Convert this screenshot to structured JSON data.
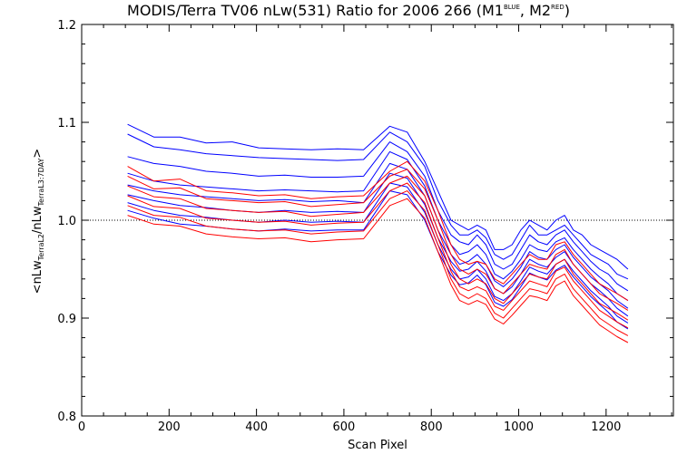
{
  "chart_data": {
    "type": "line",
    "title": {
      "main": "MODIS/Terra TV06 nLw(531) Ratio for 2006 266 (M1",
      "sup1": "BLUE",
      "mid": ", M2",
      "sup2": "RED",
      "end": ")"
    },
    "xlabel": "Scan Pixel",
    "ylabel": {
      "pre": "<nLw",
      "sub1": "TerraL2",
      "mid": "/nLw",
      "sub2": "TerraL3:7DAY",
      "post": ">"
    },
    "xlim": [
      0,
      1354
    ],
    "ylim": [
      0.8,
      1.2
    ],
    "xticks": [
      "0",
      "200",
      "400",
      "600",
      "800",
      "1000",
      "1200"
    ],
    "yticks": [
      "0.8",
      "0.9",
      "1.0",
      "1.1",
      "1.2"
    ],
    "reference_line": 1.0,
    "grid": false,
    "colors": {
      "M1": "#0000ff",
      "M2": "#ff0000",
      "axis": "#000000"
    },
    "x": [
      105,
      165,
      225,
      285,
      345,
      405,
      465,
      525,
      585,
      645,
      705,
      745,
      785,
      815,
      845,
      865,
      885,
      905,
      925,
      945,
      965,
      985,
      1005,
      1025,
      1045,
      1065,
      1085,
      1105,
      1125,
      1145,
      1165,
      1185,
      1205,
      1225,
      1250
    ],
    "series": [
      {
        "name": "M1",
        "values": [
          1.098,
          1.085,
          1.085,
          1.079,
          1.08,
          1.074,
          1.073,
          1.072,
          1.073,
          1.072,
          1.096,
          1.09,
          1.06,
          1.03,
          1.0,
          0.995,
          0.99,
          0.995,
          0.99,
          0.97,
          0.97,
          0.975,
          0.99,
          1.0,
          0.995,
          0.99,
          1.0,
          1.005,
          0.99,
          0.985,
          0.975,
          0.97,
          0.965,
          0.96,
          0.95
        ]
      },
      {
        "name": "M1",
        "values": [
          1.088,
          1.075,
          1.072,
          1.068,
          1.066,
          1.064,
          1.063,
          1.062,
          1.061,
          1.062,
          1.09,
          1.08,
          1.055,
          1.02,
          0.995,
          0.985,
          0.985,
          0.99,
          0.982,
          0.965,
          0.96,
          0.965,
          0.98,
          0.995,
          0.985,
          0.985,
          0.99,
          0.995,
          0.985,
          0.975,
          0.965,
          0.96,
          0.955,
          0.945,
          0.94
        ]
      },
      {
        "name": "M1",
        "values": [
          1.065,
          1.058,
          1.055,
          1.05,
          1.048,
          1.045,
          1.046,
          1.044,
          1.044,
          1.045,
          1.08,
          1.07,
          1.045,
          1.01,
          0.985,
          0.978,
          0.975,
          0.985,
          0.975,
          0.955,
          0.95,
          0.955,
          0.97,
          0.985,
          0.978,
          0.975,
          0.985,
          0.99,
          0.978,
          0.968,
          0.958,
          0.95,
          0.945,
          0.935,
          0.928
        ]
      },
      {
        "name": "M1",
        "values": [
          1.048,
          1.04,
          1.036,
          1.034,
          1.032,
          1.03,
          1.031,
          1.03,
          1.029,
          1.03,
          1.07,
          1.062,
          1.035,
          1.0,
          0.975,
          0.965,
          0.968,
          0.975,
          0.965,
          0.945,
          0.94,
          0.948,
          0.96,
          0.975,
          0.97,
          0.968,
          0.978,
          0.982,
          0.97,
          0.96,
          0.95,
          0.942,
          0.935,
          0.925,
          0.918
        ]
      },
      {
        "name": "M1",
        "values": [
          1.036,
          1.03,
          1.026,
          1.024,
          1.022,
          1.02,
          1.021,
          1.019,
          1.02,
          1.018,
          1.058,
          1.052,
          1.025,
          0.99,
          0.965,
          0.955,
          0.958,
          0.965,
          0.955,
          0.938,
          0.932,
          0.94,
          0.952,
          0.968,
          0.962,
          0.96,
          0.97,
          0.975,
          0.962,
          0.952,
          0.942,
          0.935,
          0.928,
          0.918,
          0.91
        ]
      },
      {
        "name": "M1",
        "values": [
          1.026,
          1.02,
          1.015,
          1.013,
          1.01,
          1.008,
          1.01,
          1.008,
          1.009,
          1.008,
          1.048,
          1.043,
          1.016,
          0.982,
          0.958,
          0.948,
          0.95,
          0.958,
          0.948,
          0.93,
          0.925,
          0.932,
          0.945,
          0.96,
          0.955,
          0.952,
          0.962,
          0.968,
          0.955,
          0.945,
          0.935,
          0.928,
          0.92,
          0.91,
          0.902
        ]
      },
      {
        "name": "M1",
        "values": [
          1.018,
          1.01,
          1.005,
          1.003,
          1.0,
          0.998,
          1.0,
          0.998,
          0.999,
          0.998,
          1.038,
          1.034,
          1.008,
          0.975,
          0.95,
          0.94,
          0.942,
          0.95,
          0.94,
          0.922,
          0.918,
          0.925,
          0.938,
          0.952,
          0.948,
          0.945,
          0.955,
          0.96,
          0.948,
          0.938,
          0.928,
          0.92,
          0.912,
          0.902,
          0.895
        ]
      },
      {
        "name": "M1",
        "values": [
          1.01,
          1.002,
          0.996,
          0.994,
          0.991,
          0.989,
          0.991,
          0.989,
          0.99,
          0.99,
          1.03,
          1.026,
          1.0,
          0.968,
          0.944,
          0.934,
          0.936,
          0.944,
          0.934,
          0.916,
          0.912,
          0.919,
          0.932,
          0.946,
          0.942,
          0.939,
          0.949,
          0.954,
          0.942,
          0.932,
          0.922,
          0.914,
          0.906,
          0.896,
          0.889
        ]
      },
      {
        "name": "M2",
        "values": [
          1.055,
          1.04,
          1.042,
          1.03,
          1.028,
          1.025,
          1.026,
          1.022,
          1.024,
          1.025,
          1.05,
          1.06,
          1.04,
          1.01,
          0.975,
          0.96,
          0.955,
          0.958,
          0.955,
          0.94,
          0.935,
          0.945,
          0.955,
          0.965,
          0.96,
          0.96,
          0.975,
          0.978,
          0.965,
          0.955,
          0.945,
          0.935,
          0.93,
          0.925,
          0.918
        ]
      },
      {
        "name": "M2",
        "values": [
          1.045,
          1.032,
          1.033,
          1.022,
          1.02,
          1.018,
          1.019,
          1.014,
          1.016,
          1.018,
          1.045,
          1.052,
          1.032,
          1.0,
          0.965,
          0.95,
          0.945,
          0.95,
          0.945,
          0.93,
          0.925,
          0.935,
          0.945,
          0.955,
          0.952,
          0.95,
          0.965,
          0.97,
          0.955,
          0.945,
          0.935,
          0.925,
          0.92,
          0.915,
          0.908
        ]
      },
      {
        "name": "M2",
        "values": [
          1.035,
          1.024,
          1.022,
          1.012,
          1.01,
          1.008,
          1.009,
          1.004,
          1.006,
          1.008,
          1.038,
          1.045,
          1.025,
          0.99,
          0.955,
          0.94,
          0.935,
          0.94,
          0.935,
          0.92,
          0.915,
          0.925,
          0.935,
          0.945,
          0.942,
          0.94,
          0.955,
          0.96,
          0.945,
          0.935,
          0.925,
          0.915,
          0.91,
          0.905,
          0.898
        ]
      },
      {
        "name": "M2",
        "values": [
          1.025,
          1.014,
          1.012,
          1.002,
          1.0,
          0.998,
          0.999,
          0.995,
          0.997,
          0.998,
          1.03,
          1.038,
          1.018,
          0.982,
          0.948,
          0.932,
          0.928,
          0.932,
          0.928,
          0.912,
          0.908,
          0.918,
          0.928,
          0.938,
          0.935,
          0.932,
          0.948,
          0.952,
          0.938,
          0.928,
          0.918,
          0.908,
          0.902,
          0.896,
          0.89
        ]
      },
      {
        "name": "M2",
        "values": [
          1.015,
          1.005,
          1.003,
          0.994,
          0.991,
          0.989,
          0.99,
          0.986,
          0.988,
          0.989,
          1.022,
          1.03,
          1.01,
          0.975,
          0.94,
          0.925,
          0.92,
          0.925,
          0.92,
          0.905,
          0.9,
          0.91,
          0.92,
          0.93,
          0.928,
          0.925,
          0.94,
          0.945,
          0.93,
          0.92,
          0.91,
          0.9,
          0.894,
          0.888,
          0.882
        ]
      },
      {
        "name": "M2",
        "values": [
          1.005,
          0.996,
          0.994,
          0.986,
          0.983,
          0.981,
          0.982,
          0.978,
          0.98,
          0.981,
          1.015,
          1.022,
          1.002,
          0.968,
          0.934,
          0.918,
          0.914,
          0.918,
          0.914,
          0.899,
          0.894,
          0.903,
          0.913,
          0.923,
          0.921,
          0.918,
          0.933,
          0.938,
          0.923,
          0.913,
          0.903,
          0.893,
          0.887,
          0.881,
          0.875
        ]
      }
    ]
  }
}
